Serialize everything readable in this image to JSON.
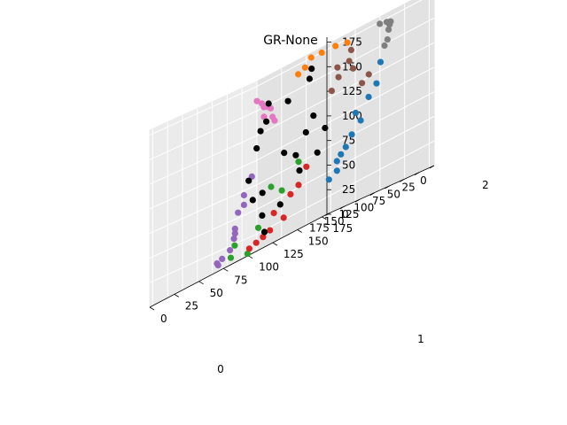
{
  "chart_data": {
    "type": "scatter3d",
    "title": "GR-None",
    "axes": {
      "x": {
        "label": "0",
        "ticks": [
          "0",
          "25",
          "50",
          "75",
          "100",
          "125",
          "150",
          "175"
        ],
        "lim": [
          0,
          180
        ]
      },
      "y": {
        "label": "1",
        "ticks": [
          "0",
          "25",
          "50",
          "75",
          "100",
          "125",
          "150",
          "175"
        ],
        "lim": [
          0,
          180
        ]
      },
      "z": {
        "label": "2",
        "ticks": [
          "0",
          "25",
          "50",
          "75",
          "100",
          "125",
          "150",
          "175"
        ],
        "lim": [
          0,
          180
        ]
      }
    },
    "grid": true,
    "series": [
      {
        "color": "#ff7f0e",
        "points": [
          [
            8,
            60,
            175
          ],
          [
            15,
            75,
            174
          ],
          [
            25,
            95,
            173
          ],
          [
            10,
            55,
            168
          ],
          [
            5,
            45,
            165
          ],
          [
            30,
            110,
            170
          ]
        ]
      },
      {
        "color": "#7f7f7f",
        "points": [
          [
            30,
            150,
            170
          ],
          [
            40,
            160,
            168
          ],
          [
            60,
            170,
            160
          ],
          [
            70,
            175,
            150
          ],
          [
            80,
            178,
            145
          ],
          [
            50,
            165,
            165
          ],
          [
            25,
            140,
            172
          ]
        ]
      },
      {
        "color": "#8c564b",
        "points": [
          [
            15,
            85,
            130
          ],
          [
            20,
            95,
            140
          ],
          [
            35,
            115,
            150
          ],
          [
            45,
            125,
            140
          ],
          [
            55,
            140,
            120
          ],
          [
            60,
            150,
            125
          ],
          [
            40,
            120,
            160
          ],
          [
            30,
            100,
            150
          ]
        ]
      },
      {
        "color": "#1f77b4",
        "points": [
          [
            110,
            180,
            100
          ],
          [
            120,
            178,
            80
          ],
          [
            130,
            175,
            70
          ],
          [
            140,
            175,
            60
          ],
          [
            150,
            172,
            50
          ],
          [
            155,
            175,
            40
          ],
          [
            100,
            182,
            110
          ],
          [
            90,
            180,
            130
          ],
          [
            125,
            176,
            90
          ],
          [
            145,
            173,
            55
          ],
          [
            160,
            170,
            35
          ]
        ]
      },
      {
        "color": "#e377c2",
        "points": [
          [
            0,
            0,
            160
          ],
          [
            5,
            10,
            150
          ],
          [
            10,
            20,
            145
          ],
          [
            15,
            25,
            135
          ],
          [
            0,
            5,
            155
          ],
          [
            8,
            12,
            140
          ],
          [
            20,
            30,
            130
          ],
          [
            12,
            18,
            148
          ]
        ]
      },
      {
        "color": "#9467bd",
        "points": [
          [
            25,
            10,
            85
          ],
          [
            30,
            5,
            70
          ],
          [
            45,
            5,
            40
          ],
          [
            55,
            10,
            30
          ],
          [
            75,
            10,
            15
          ],
          [
            90,
            15,
            10
          ],
          [
            35,
            8,
            60
          ],
          [
            40,
            5,
            55
          ],
          [
            50,
            8,
            35
          ],
          [
            65,
            12,
            20
          ],
          [
            100,
            20,
            12
          ]
        ]
      },
      {
        "color": "#2ca02c",
        "points": [
          [
            120,
            50,
            20
          ],
          [
            130,
            80,
            25
          ],
          [
            110,
            40,
            10
          ],
          [
            140,
            110,
            50
          ],
          [
            125,
            90,
            60
          ],
          [
            115,
            60,
            5
          ],
          [
            145,
            130,
            70
          ]
        ]
      },
      {
        "color": "#d62728",
        "points": [
          [
            150,
            90,
            10
          ],
          [
            160,
            110,
            15
          ],
          [
            170,
            130,
            20
          ],
          [
            175,
            140,
            40
          ],
          [
            165,
            150,
            60
          ],
          [
            155,
            100,
            12
          ],
          [
            170,
            120,
            30
          ],
          [
            145,
            80,
            8
          ],
          [
            178,
            150,
            45
          ]
        ]
      },
      {
        "color": "#000000",
        "points": [
          [
            50,
            30,
            110
          ],
          [
            60,
            40,
            125
          ],
          [
            70,
            70,
            90
          ],
          [
            80,
            80,
            140
          ],
          [
            90,
            60,
            60
          ],
          [
            100,
            100,
            80
          ],
          [
            110,
            120,
            150
          ],
          [
            120,
            130,
            110
          ],
          [
            40,
            20,
            60
          ],
          [
            30,
            30,
            150
          ],
          [
            130,
            140,
            70
          ],
          [
            60,
            60,
            40
          ],
          [
            80,
            40,
            80
          ],
          [
            150,
            160,
            90
          ],
          [
            100,
            70,
            130
          ],
          [
            140,
            90,
            35
          ],
          [
            70,
            50,
            20
          ],
          [
            90,
            110,
            160
          ],
          [
            50,
            80,
            100
          ],
          [
            160,
            140,
            60
          ]
        ]
      }
    ]
  }
}
